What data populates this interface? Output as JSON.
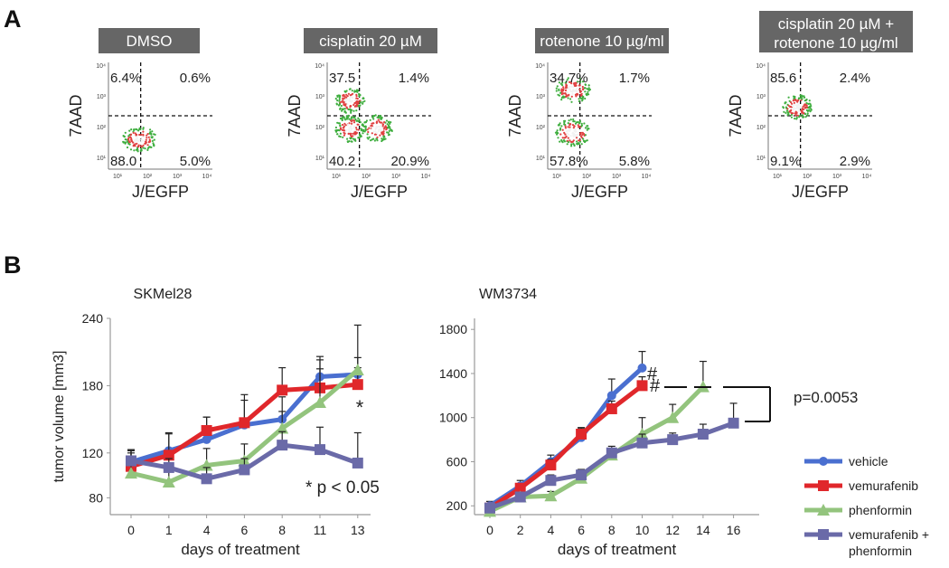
{
  "panel_a": {
    "letter": "A",
    "plots": [
      {
        "title_lines": [
          "DMSO"
        ],
        "ylabel": "7AAD",
        "xlabel": "J/EGFP",
        "quadrants": {
          "ul": "6.4%",
          "ur": "0.6%",
          "ll": "88.0",
          "lr": "5.0%"
        },
        "ytick_labels": [
          "10⁴",
          "10³",
          "10²",
          "10¹"
        ],
        "xtick_labels": [
          "10¹",
          "10²",
          "10³",
          "10⁴"
        ]
      },
      {
        "title_lines": [
          "cisplatin 20 µM"
        ],
        "ylabel": "7AAD",
        "xlabel": "J/EGFP",
        "quadrants": {
          "ul": "37.5",
          "ur": "1.4%",
          "ll": "40.2",
          "lr": "20.9%"
        },
        "ytick_labels": [
          "10⁴",
          "10³",
          "10²",
          "10¹"
        ],
        "xtick_labels": [
          "10¹",
          "10²",
          "10³",
          "10⁴"
        ]
      },
      {
        "title_lines": [
          "rotenone 10 µg/ml"
        ],
        "ylabel": "7AAD",
        "xlabel": "J/EGFP",
        "quadrants": {
          "ul": "34.7%",
          "ur": "1.7%",
          "ll": "57.8%",
          "lr": "5.8%"
        },
        "ytick_labels": [
          "10⁴",
          "10³",
          "10²",
          "10¹"
        ],
        "xtick_labels": [
          "10¹",
          "10²",
          "10³",
          "10⁴"
        ]
      },
      {
        "title_lines": [
          "cisplatin 20 µM +",
          "rotenone 10 µg/ml"
        ],
        "ylabel": "7AAD",
        "xlabel": "J/EGFP",
        "quadrants": {
          "ul": "85.6",
          "ur": "2.4%",
          "ll": "9.1%",
          "lr": "2.9%"
        },
        "ytick_labels": [
          "10⁴",
          "10³",
          "10²",
          "10¹"
        ],
        "xtick_labels": [
          "10¹",
          "10²",
          "10³",
          "10⁴"
        ]
      }
    ]
  },
  "panel_b": {
    "letter": "B",
    "legend": [
      "vehicle",
      "vemurafenib",
      "phenformin",
      "vemurafenib +",
      "phenformin"
    ]
  },
  "colors": {
    "vehicle": "#4a6fd0",
    "vemurafenib": "#e0272b",
    "phenformin": "#93c47d",
    "combo": "#6a6aa8",
    "title_box": "#666666"
  },
  "chart_data": [
    {
      "type": "line",
      "title": "SKMel28",
      "xlabel": "days of treatment",
      "ylabel": "tumor volume [mm3]",
      "x": [
        0,
        1,
        4,
        6,
        8,
        11,
        13
      ],
      "xticks": [
        "0",
        "1",
        "4",
        "6",
        "8",
        "11",
        "13"
      ],
      "yticks": [
        80,
        120,
        180,
        240
      ],
      "ylim": [
        65,
        240
      ],
      "annotations": [
        "*",
        "* p < 0.05"
      ],
      "series": [
        {
          "name": "vehicle",
          "values": [
            112,
            122,
            132,
            145,
            150,
            188,
            190
          ],
          "err": [
            10,
            15,
            20,
            22,
            20,
            18,
            15
          ]
        },
        {
          "name": "vemurafenib",
          "values": [
            108,
            118,
            140,
            147,
            176,
            178,
            181
          ],
          "err": [
            12,
            20,
            12,
            25,
            20,
            25,
            15
          ]
        },
        {
          "name": "phenformin",
          "values": [
            102,
            94,
            109,
            113,
            142,
            165,
            194
          ],
          "err": [
            20,
            10,
            15,
            15,
            15,
            30,
            40
          ]
        },
        {
          "name": "vemurafenib + phenformin",
          "values": [
            113,
            107,
            97,
            105,
            127,
            123,
            111
          ],
          "err": [
            10,
            8,
            10,
            10,
            12,
            20,
            27
          ]
        }
      ]
    },
    {
      "type": "line",
      "title": "WM3734",
      "xlabel": "days of treatment",
      "x": [
        0,
        2,
        4,
        6,
        8,
        10,
        12,
        14,
        16
      ],
      "xticks": [
        "0",
        "2",
        "4",
        "6",
        "8",
        "10",
        "12",
        "14",
        "16"
      ],
      "yticks": [
        200,
        600,
        1000,
        1400,
        1800
      ],
      "ylim": [
        120,
        1900
      ],
      "annotations": [
        "#",
        "#",
        "p=0.0053"
      ],
      "series": [
        {
          "name": "vehicle",
          "x": [
            0,
            2,
            4,
            6,
            8,
            10
          ],
          "values": [
            200,
            380,
            600,
            820,
            1200,
            1450
          ],
          "err": [
            40,
            50,
            60,
            80,
            150,
            150
          ]
        },
        {
          "name": "vemurafenib",
          "x": [
            0,
            2,
            4,
            6,
            8,
            10
          ],
          "values": [
            180,
            360,
            570,
            850,
            1080,
            1290
          ],
          "err": [
            30,
            40,
            50,
            60,
            70,
            80
          ]
        },
        {
          "name": "phenformin",
          "x": [
            0,
            2,
            4,
            6,
            8,
            10,
            12,
            14
          ],
          "values": [
            150,
            280,
            290,
            450,
            660,
            850,
            1000,
            1280
          ],
          "err": [
            30,
            40,
            40,
            50,
            60,
            150,
            120,
            230
          ]
        },
        {
          "name": "vemurafenib + phenformin",
          "x": [
            0,
            2,
            4,
            6,
            8,
            10,
            12,
            14,
            16
          ],
          "values": [
            180,
            280,
            430,
            480,
            680,
            770,
            800,
            850,
            950
          ],
          "err": [
            30,
            40,
            50,
            50,
            60,
            80,
            60,
            90,
            180
          ]
        }
      ]
    }
  ]
}
